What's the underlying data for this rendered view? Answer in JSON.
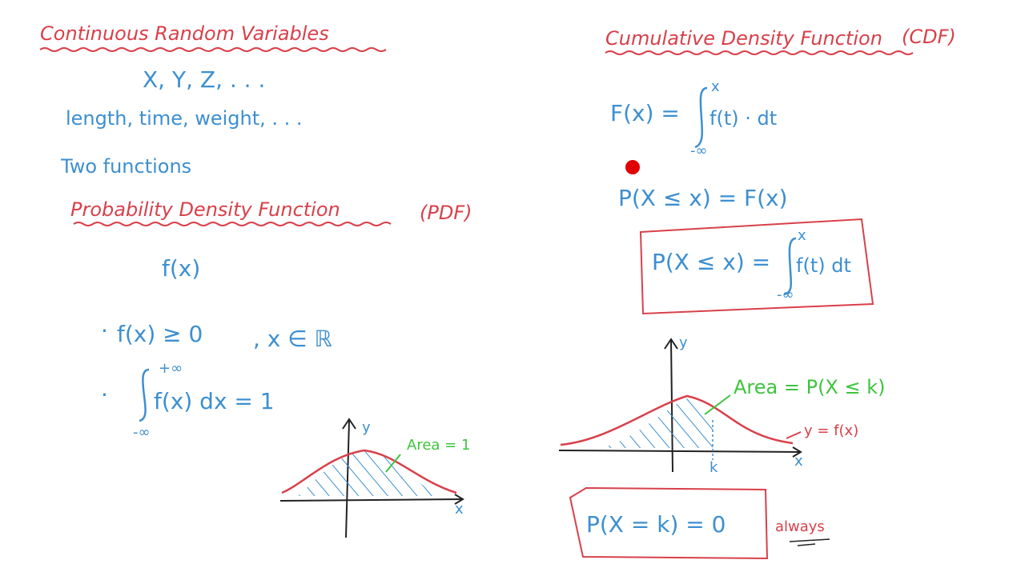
{
  "colors": {
    "red": "#d8404a",
    "blue": "#3d8fd0",
    "green": "#3fc43f",
    "background": "#ffffff"
  },
  "left": {
    "title": "Continuous Random Variables",
    "variables": "X, Y, Z, . . .",
    "examples": "length, time, weight, . . .",
    "two_functions": "Two functions",
    "pdf_title": "Probability Density Function",
    "pdf_abbrev": "(PDF)",
    "pdf_symbol": "f(x)",
    "property1_bullet": "·",
    "property1": "f(x) ≥ 0",
    "property1_domain": ", x ∈ ℝ",
    "property2_bullet": "·",
    "property2_upper": "+∞",
    "property2_integrand": "f(x) dx = 1",
    "property2_lower": "-∞",
    "graph": {
      "y_label": "y",
      "x_label": "x",
      "area_label": "Area = 1"
    }
  },
  "right": {
    "cdf_title": "Cumulative Density Function",
    "cdf_abbrev": "(CDF)",
    "cdf_def_lhs": "F(x) =",
    "cdf_def_upper": "x",
    "cdf_def_integrand": "f(t) · dt",
    "cdf_def_lower": "-∞",
    "prob_eq": "P(X ≤ x) = F(x)",
    "box_lhs": "P(X ≤ x) =",
    "box_upper": "x",
    "box_integrand": "f(t) dt",
    "box_lower": "-∞",
    "graph": {
      "y_label": "y",
      "x_label": "x",
      "k_label": "k",
      "area_label": "Area = P(X ≤ k)",
      "curve_label": "y = f(x)"
    },
    "point_prob": "P(X = k) = 0",
    "always": "always"
  },
  "pointer": {
    "color": "#e00000"
  }
}
